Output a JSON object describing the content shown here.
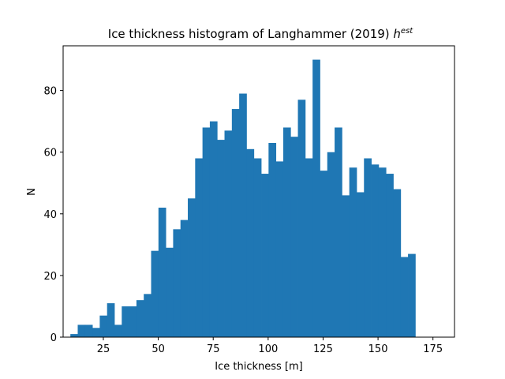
{
  "chart_data": {
    "type": "bar",
    "title": "Ice thickness histogram of Langhammer (2019) ",
    "title_math_base": "h",
    "title_math_sup": "est",
    "xlabel": "Ice thickness [m]",
    "ylabel": "N",
    "xlim": [
      6.7,
      184.8
    ],
    "ylim": [
      0,
      94.5
    ],
    "xticks": [
      25,
      50,
      75,
      100,
      125,
      150,
      175
    ],
    "yticks": [
      0,
      20,
      40,
      60,
      80
    ],
    "bin_width": 3.34,
    "bin_edges_start": 10.0,
    "values": [
      1,
      4,
      4,
      3,
      7,
      11,
      4,
      10,
      10,
      12,
      14,
      28,
      42,
      29,
      35,
      38,
      45,
      58,
      68,
      70,
      64,
      67,
      74,
      79,
      61,
      58,
      53,
      63,
      57,
      68,
      65,
      77,
      58,
      90,
      54,
      60,
      68,
      46,
      55,
      47,
      58,
      56,
      55,
      53,
      48,
      26,
      27
    ],
    "bar_color": "#1f77b4",
    "grid": false
  }
}
